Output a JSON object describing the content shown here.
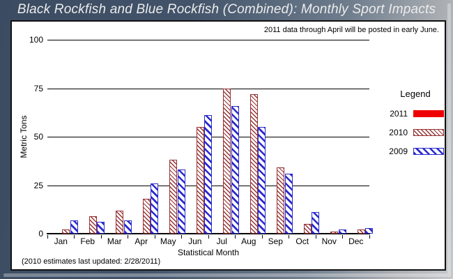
{
  "window": {
    "title": "Black Rockfish and Blue Rockfish (Combined): Monthly Sport Impacts"
  },
  "note": "2011 data through April will be posted in early June.",
  "footer": "(2010 estimates last updated: 2/28/2011)",
  "legend": {
    "title": "Legend",
    "entries": [
      {
        "label": "2011",
        "color": "#ee0000",
        "pattern": "solid"
      },
      {
        "label": "2010",
        "color": "#953131",
        "pattern": "dense-backslash-hatch"
      },
      {
        "label": "2009",
        "color": "#2a2ace",
        "pattern": "wide-backslash-hatch"
      }
    ]
  },
  "colors": {
    "frame_dark": "#3b4b61",
    "frame_light": "#c6c8ca",
    "panel_bg": "#ffffff",
    "axis": "#000000"
  },
  "chart_data": {
    "type": "bar",
    "title": "Black Rockfish and Blue Rockfish (Combined): Monthly Sport Impacts",
    "xlabel": "Statistical Month",
    "ylabel": "Metric Tons",
    "ylim": [
      0,
      100
    ],
    "yticks": [
      0,
      25,
      50,
      75,
      100
    ],
    "grid": true,
    "legend_position": "right",
    "categories": [
      "Jan",
      "Feb",
      "Mar",
      "Apr",
      "May",
      "Jun",
      "Jul",
      "Aug",
      "Sep",
      "Oct",
      "Nov",
      "Dec"
    ],
    "series": [
      {
        "name": "2011",
        "values": [
          0,
          0,
          0,
          0,
          0,
          0,
          0,
          0,
          0,
          0,
          0,
          0
        ]
      },
      {
        "name": "2010",
        "values": [
          2,
          9,
          12,
          18,
          38,
          55,
          75,
          72,
          34,
          5,
          1,
          2
        ]
      },
      {
        "name": "2009",
        "values": [
          7,
          6,
          7,
          26,
          33,
          61,
          66,
          55,
          31,
          11,
          2,
          3
        ]
      }
    ]
  }
}
